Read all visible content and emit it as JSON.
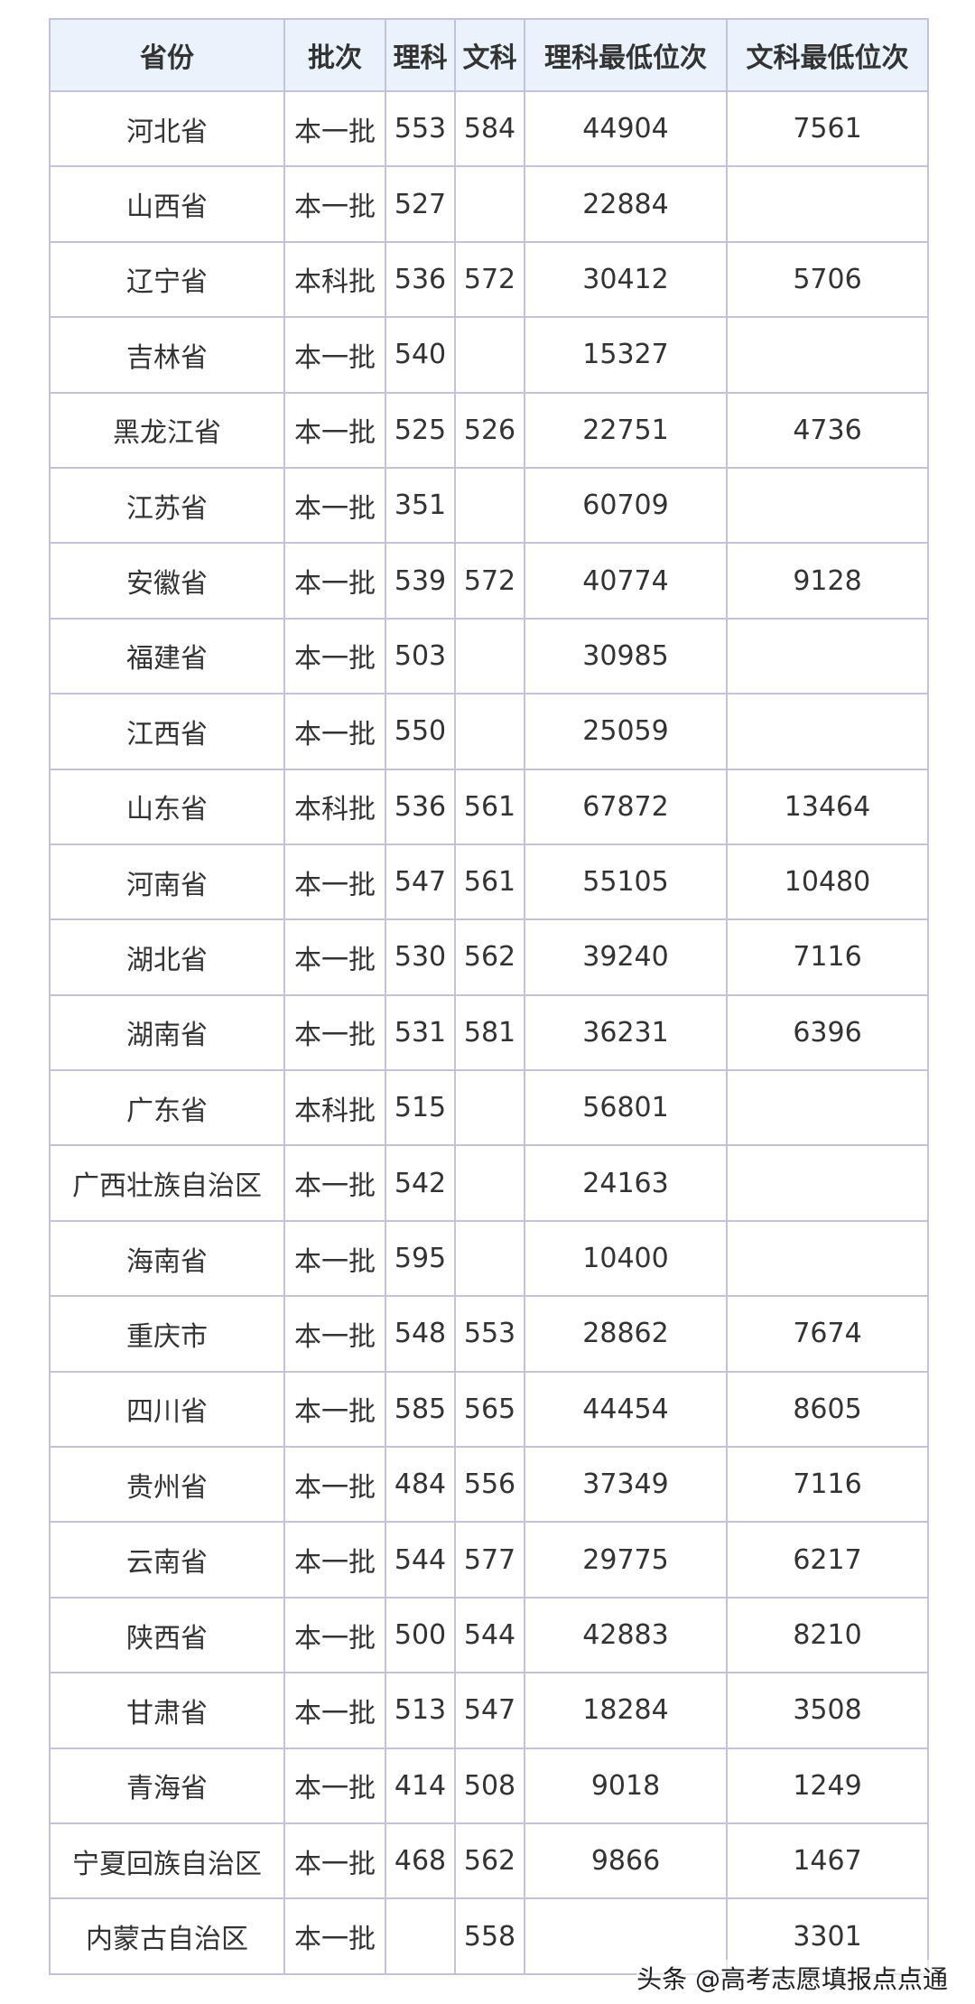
{
  "table": {
    "header": [
      "省份",
      "批次",
      "理科",
      "文科",
      "理科最低位次",
      "文科最低位次"
    ],
    "rows": [
      [
        "河北省",
        "本一批",
        553,
        584,
        44904,
        7561
      ],
      [
        "山西省",
        "本一批",
        527,
        null,
        22884,
        null
      ],
      [
        "辽宁省",
        "本科批",
        536,
        572,
        30412,
        5706
      ],
      [
        "吉林省",
        "本一批",
        540,
        null,
        15327,
        null
      ],
      [
        "黑龙江省",
        "本一批",
        525,
        526,
        22751,
        4736
      ],
      [
        "江苏省",
        "本一批",
        351,
        null,
        60709,
        null
      ],
      [
        "安徽省",
        "本一批",
        539,
        572,
        40774,
        9128
      ],
      [
        "福建省",
        "本一批",
        503,
        null,
        30985,
        null
      ],
      [
        "江西省",
        "本一批",
        550,
        null,
        25059,
        null
      ],
      [
        "山东省",
        "本科批",
        536,
        561,
        67872,
        13464
      ],
      [
        "河南省",
        "本一批",
        547,
        561,
        55105,
        10480
      ],
      [
        "湖北省",
        "本一批",
        530,
        562,
        39240,
        7116
      ],
      [
        "湖南省",
        "本一批",
        531,
        581,
        36231,
        6396
      ],
      [
        "广东省",
        "本科批",
        515,
        null,
        56801,
        null
      ],
      [
        "广西壮族自治区",
        "本一批",
        542,
        null,
        24163,
        null
      ],
      [
        "海南省",
        "本一批",
        595,
        null,
        10400,
        null
      ],
      [
        "重庆市",
        "本一批",
        548,
        553,
        28862,
        7674
      ],
      [
        "四川省",
        "本一批",
        585,
        565,
        44454,
        8605
      ],
      [
        "贵州省",
        "本一批",
        484,
        556,
        37349,
        7116
      ],
      [
        "云南省",
        "本一批",
        544,
        577,
        29775,
        6217
      ],
      [
        "陕西省",
        "本一批",
        500,
        544,
        42883,
        8210
      ],
      [
        "甘肃省",
        "本一批",
        513,
        547,
        18284,
        3508
      ],
      [
        "青海省",
        "本一批",
        414,
        508,
        9018,
        1249
      ],
      [
        "宁夏回族自治区",
        "本一批",
        468,
        562,
        9866,
        1467
      ],
      [
        "内蒙古自治区",
        "本一批",
        null,
        558,
        null,
        3301
      ]
    ]
  },
  "watermark": "头条 @高考志愿填报点点通"
}
